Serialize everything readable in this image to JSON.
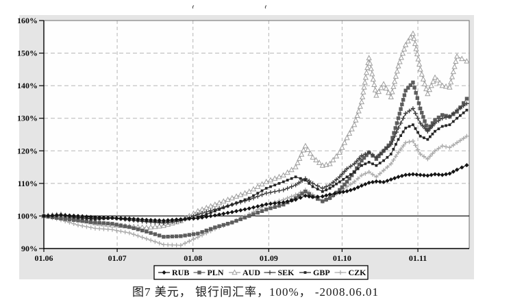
{
  "figure": {
    "caption": "图7  美元， 银行间汇率，100%， -2008.06.01"
  },
  "chart_data": {
    "type": "line",
    "title": "",
    "xlabel": "",
    "ylabel": "",
    "ylim": [
      90,
      160
    ],
    "grid": true,
    "legend_position": "bottom",
    "baseline": 100,
    "colors": {
      "frame_bg": "#e5e5e5",
      "plot_bg": "#fefefe",
      "grid": "#b5b5b5",
      "axis": "#000000",
      "plot_frame": "#6a6a6a",
      "legend_bg": "#ffffff"
    },
    "y_ticks": [
      90,
      100,
      110,
      120,
      130,
      140,
      150,
      160
    ],
    "y_tick_labels": [
      "90%",
      "100%",
      "110%",
      "120%",
      "130%",
      "140%",
      "150%",
      "160%"
    ],
    "x_tick_labels": [
      "01.06",
      "01.07",
      "01.08",
      "01.09",
      "01.10",
      "01.11"
    ],
    "x_tick_days": [
      0,
      30,
      61,
      92,
      122,
      153
    ],
    "x_domain_days": [
      0,
      174
    ],
    "x_days": [
      0,
      7,
      14,
      21,
      28,
      35,
      42,
      49,
      56,
      63,
      70,
      77,
      84,
      91,
      98,
      103,
      107,
      110,
      114,
      117,
      121,
      124,
      127,
      130,
      133,
      136,
      139,
      142,
      145,
      148,
      151,
      154,
      157,
      160,
      163,
      166,
      169,
      173
    ],
    "series": [
      {
        "name": "RUB",
        "marker": "diamond",
        "color": "#141414",
        "values": [
          100,
          100.3,
          100,
          99.6,
          99.4,
          99.2,
          98.8,
          98.6,
          99,
          99.3,
          100.2,
          101.2,
          102.3,
          103.6,
          104.2,
          105,
          106.2,
          105.8,
          106,
          106.6,
          107.2,
          107.6,
          108.3,
          109.3,
          110.2,
          110.6,
          110.4,
          111.2,
          112,
          112.6,
          112.8,
          112.6,
          112.4,
          112.8,
          112.6,
          113,
          114.2,
          115.6
        ]
      },
      {
        "name": "PLN",
        "marker": "square",
        "color": "#5d5d5d",
        "values": [
          100,
          99.2,
          98.6,
          98,
          97.6,
          96.6,
          95.2,
          93.6,
          93.8,
          94.6,
          96.5,
          98,
          100,
          102,
          103.5,
          105.5,
          107.5,
          106,
          104.5,
          105.5,
          108,
          110.5,
          113.5,
          117,
          119.5,
          117.5,
          120,
          122.5,
          130,
          138.5,
          141,
          133,
          126.5,
          129.5,
          131,
          130.5,
          132,
          136
        ]
      },
      {
        "name": "AUD",
        "marker": "triangle-open",
        "color": "#9e9e9e",
        "values": [
          100,
          100.5,
          99,
          97.8,
          97.2,
          96.8,
          96.4,
          97,
          98.5,
          101.5,
          103.5,
          105.5,
          107.5,
          110.5,
          112.5,
          115,
          121.5,
          118,
          115.5,
          116,
          119.5,
          124,
          128,
          135,
          148.5,
          137,
          140.5,
          136.5,
          146,
          152.5,
          156,
          145,
          137.5,
          142.5,
          140,
          139.5,
          149,
          147.5
        ]
      },
      {
        "name": "SEK",
        "marker": "plus",
        "color": "#3d3d3d",
        "values": [
          100,
          100.3,
          99.6,
          99.2,
          99.5,
          98.8,
          98.2,
          97.8,
          98.5,
          100.5,
          102,
          103.5,
          105,
          107,
          108,
          109.5,
          111.5,
          110,
          108.5,
          109.5,
          112,
          114.5,
          116,
          118.5,
          119.5,
          118,
          120,
          122,
          127,
          131.5,
          133,
          128.5,
          126,
          128.5,
          130,
          130.5,
          132.5,
          134.5
        ]
      },
      {
        "name": "GBP",
        "marker": "square-small",
        "color": "#262626",
        "values": [
          100,
          100.2,
          99.4,
          99,
          99.3,
          98.8,
          98.4,
          98.2,
          98.8,
          99.5,
          101.5,
          103.5,
          105.5,
          108.5,
          110.5,
          112,
          111,
          109,
          107.5,
          108.5,
          110.5,
          112,
          113.5,
          115.5,
          116.5,
          115.5,
          117,
          119,
          123.5,
          127,
          128,
          124.5,
          123.5,
          126,
          127.5,
          128,
          130,
          132.5
        ]
      },
      {
        "name": "CZK",
        "marker": "plus",
        "color": "#ababab",
        "values": [
          100,
          98.8,
          97.2,
          96.2,
          95.8,
          94.8,
          93,
          91.2,
          91,
          93.5,
          96,
          98,
          100.5,
          103.5,
          105,
          106.5,
          108,
          106.5,
          104.5,
          105.5,
          107.5,
          109,
          110.5,
          112.5,
          113.5,
          112,
          114,
          116,
          119.5,
          122.5,
          123,
          119,
          117.5,
          120,
          121.5,
          121,
          122.5,
          124.5
        ]
      }
    ]
  }
}
